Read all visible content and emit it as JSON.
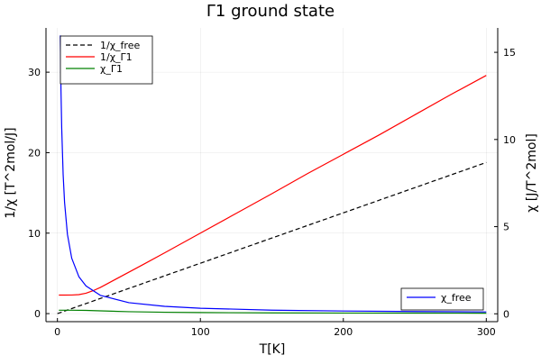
{
  "chart_data": {
    "type": "line",
    "title": "Γ1 ground state",
    "xlabel": "T[K]",
    "ylabel_left": "1/χ [T^2mol/J]",
    "ylabel_right": "χ [J/T^2mol]",
    "xlim": [
      -8,
      308
    ],
    "ylim_left": [
      -1,
      35.5
    ],
    "ylim_right": [
      -0.45,
      16.4
    ],
    "x_ticks": [
      0,
      100,
      200,
      300
    ],
    "x_tick_labels": [
      "0",
      "100",
      "200",
      "300"
    ],
    "y_left_ticks": [
      0,
      10,
      20,
      30
    ],
    "y_left_tick_labels": [
      "0",
      "10",
      "20",
      "30"
    ],
    "y_right_ticks": [
      0,
      5,
      10,
      15
    ],
    "y_right_tick_labels": [
      "0",
      "5",
      "10",
      "15"
    ],
    "grid": true,
    "legend_left_position": "top-left",
    "legend_right_position": "bottom-right",
    "series_left": [
      {
        "name": "1/χ_free",
        "color": "#000000",
        "dash": "dashed",
        "x": [
          0,
          50,
          100,
          150,
          200,
          250,
          300
        ],
        "y": [
          0,
          3.13,
          6.26,
          9.39,
          12.52,
          15.65,
          18.78
        ]
      },
      {
        "name": "1/χ_Γ1",
        "color": "#ff0000",
        "dash": "solid",
        "x": [
          1,
          5,
          10,
          15,
          20,
          25,
          30,
          40,
          50,
          60,
          75,
          100,
          125,
          150,
          175,
          200,
          225,
          250,
          275,
          300
        ],
        "y": [
          2.3,
          2.3,
          2.31,
          2.36,
          2.53,
          2.85,
          3.25,
          4.2,
          5.15,
          6.1,
          7.55,
          10.0,
          12.45,
          14.9,
          17.4,
          19.8,
          22.2,
          24.7,
          27.2,
          29.6
        ]
      },
      {
        "name": "χ_Γ1",
        "color": "#008000",
        "dash": "solid",
        "x": [
          1,
          10,
          20,
          30,
          50,
          75,
          100,
          150,
          200,
          250,
          300
        ],
        "y": [
          0.42,
          0.42,
          0.4,
          0.34,
          0.24,
          0.17,
          0.13,
          0.09,
          0.07,
          0.06,
          0.05
        ]
      }
    ],
    "series_right": [
      {
        "name": "χ_free",
        "color": "#0000ff",
        "dash": "solid",
        "x": [
          2,
          2.5,
          3,
          4,
          5,
          7,
          10,
          15,
          20,
          30,
          50,
          75,
          100,
          150,
          200,
          250,
          300
        ],
        "y": [
          15.97,
          12.78,
          10.65,
          7.99,
          6.39,
          4.56,
          3.19,
          2.13,
          1.6,
          1.06,
          0.64,
          0.43,
          0.32,
          0.21,
          0.16,
          0.13,
          0.11
        ]
      }
    ]
  }
}
